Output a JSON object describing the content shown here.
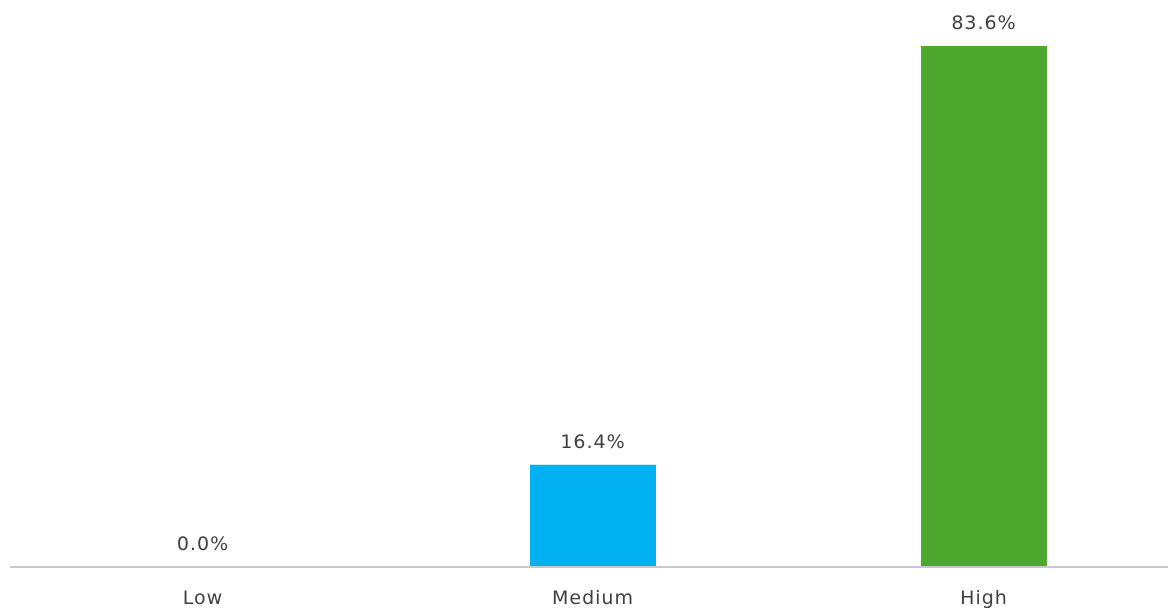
{
  "chart_data": {
    "type": "bar",
    "categories": [
      "Low",
      "Medium",
      "High"
    ],
    "values": [
      0.0,
      16.4,
      83.6
    ],
    "value_labels": [
      "0.0%",
      "16.4%",
      "83.6%"
    ],
    "colors": [
      "#00b0f0",
      "#00b0f0",
      "#4ea72e"
    ],
    "title": "",
    "xlabel": "",
    "ylabel": "",
    "ylim": [
      0,
      83.6
    ],
    "grid": false,
    "legend": "none"
  }
}
